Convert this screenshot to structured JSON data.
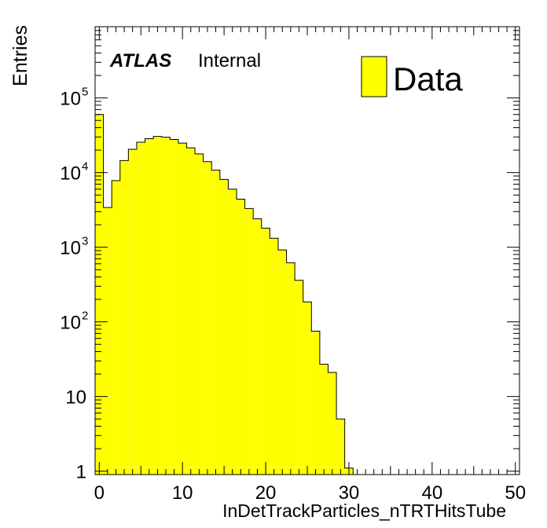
{
  "chart_data": {
    "type": "histogram",
    "log_y": true,
    "xlim": [
      -0.5,
      50.5
    ],
    "ylim": [
      0.9,
      900000
    ],
    "xlabel": "InDetTrackParticles_nTRTHitsTube",
    "ylabel": "Entries",
    "x_ticks": [
      0,
      10,
      20,
      30,
      40,
      50
    ],
    "y_ticks": [
      {
        "value": 1,
        "label": "1",
        "exp": ""
      },
      {
        "value": 10,
        "label": "10",
        "exp": ""
      },
      {
        "value": 100,
        "label": "10",
        "exp": "2"
      },
      {
        "value": 1000,
        "label": "10",
        "exp": "3"
      },
      {
        "value": 10000,
        "label": "10",
        "exp": "4"
      },
      {
        "value": 100000,
        "label": "10",
        "exp": "5"
      }
    ],
    "bins": [
      {
        "x": 0,
        "value": 60000
      },
      {
        "x": 1,
        "value": 3400
      },
      {
        "x": 2,
        "value": 7800
      },
      {
        "x": 3,
        "value": 14500
      },
      {
        "x": 4,
        "value": 20500
      },
      {
        "x": 5,
        "value": 25500
      },
      {
        "x": 6,
        "value": 28500
      },
      {
        "x": 7,
        "value": 30500
      },
      {
        "x": 8,
        "value": 29800
      },
      {
        "x": 9,
        "value": 27800
      },
      {
        "x": 10,
        "value": 24800
      },
      {
        "x": 11,
        "value": 21500
      },
      {
        "x": 12,
        "value": 17800
      },
      {
        "x": 13,
        "value": 14000
      },
      {
        "x": 14,
        "value": 10800
      },
      {
        "x": 15,
        "value": 8100
      },
      {
        "x": 16,
        "value": 6000
      },
      {
        "x": 17,
        "value": 4400
      },
      {
        "x": 18,
        "value": 3300
      },
      {
        "x": 19,
        "value": 2400
      },
      {
        "x": 20,
        "value": 1800
      },
      {
        "x": 21,
        "value": 1320
      },
      {
        "x": 22,
        "value": 920
      },
      {
        "x": 23,
        "value": 620
      },
      {
        "x": 24,
        "value": 360
      },
      {
        "x": 25,
        "value": 185
      },
      {
        "x": 26,
        "value": 75
      },
      {
        "x": 27,
        "value": 27
      },
      {
        "x": 28,
        "value": 21
      },
      {
        "x": 29,
        "value": 5
      },
      {
        "x": 30,
        "value": 1.1
      }
    ],
    "fill_color": "#ffff00",
    "line_color": "#000000",
    "legend": {
      "entry": "Data",
      "placement": "top-right"
    },
    "annotation": {
      "bold": "ATLAS",
      "text": "Internal"
    }
  }
}
